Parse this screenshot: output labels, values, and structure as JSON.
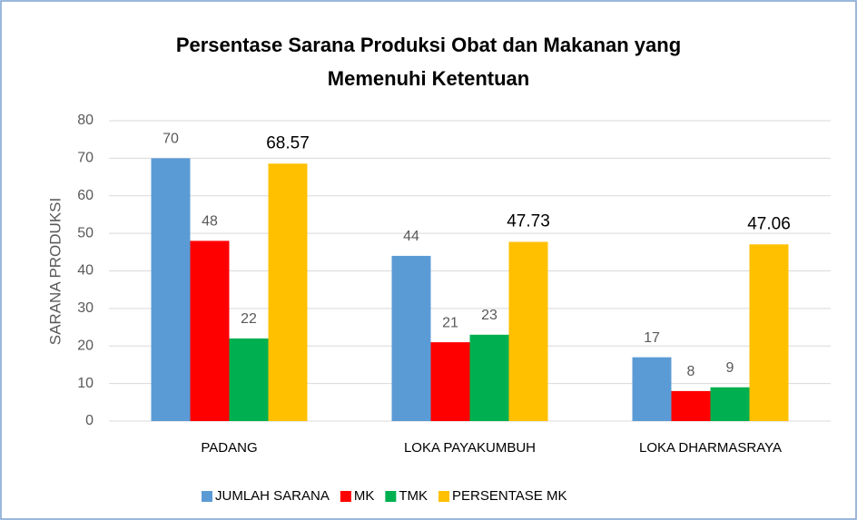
{
  "chart_data": {
    "type": "bar",
    "title": [
      "Persentase Sarana Produksi Obat dan Makanan yang",
      "Memenuhi Ketentuan"
    ],
    "y_label": "SARANA PRODUKSI",
    "categories": [
      "PADANG",
      "LOKA PAYAKUMBUH",
      "LOKA DHARMASRAYA"
    ],
    "series": [
      {
        "name": "JUMLAH SARANA",
        "color": "#5b9bd5",
        "values": [
          70,
          44,
          17
        ]
      },
      {
        "name": "MK",
        "color": "#ff0000",
        "values": [
          48,
          21,
          8
        ]
      },
      {
        "name": "TMK",
        "color": "#00b050",
        "values": [
          22,
          23,
          9
        ]
      },
      {
        "name": "PERSENTASE MK",
        "color": "#ffc000",
        "values": [
          68.57,
          47.73,
          47.06
        ]
      }
    ],
    "ylim": [
      0,
      80
    ],
    "yticks": [
      0,
      10,
      20,
      30,
      40,
      50,
      60,
      70,
      80
    ],
    "grid": true,
    "legend": "bottom"
  }
}
